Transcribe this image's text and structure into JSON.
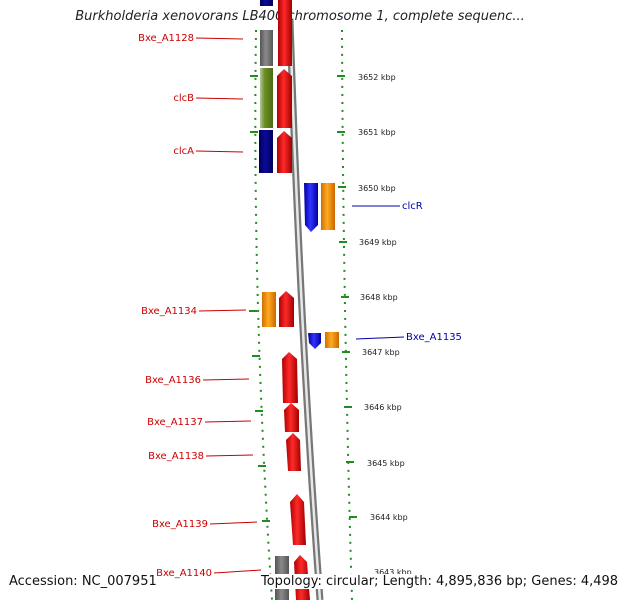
{
  "title": "Burkholderia xenovorans LB400 chromosome 1, complete sequenc...",
  "footer": {
    "accession": "Accession: NC_007951",
    "summary": "Topology: circular; Length: 4,895,836 bp; Genes: 4,498"
  },
  "colors": {
    "forward_label": "#cc0000",
    "reverse_label": "#0000aa",
    "gene_red": "#ee1111",
    "gene_blue": "#1111ee",
    "gene_orange": "#ff9900",
    "gene_grey": "#777777",
    "gene_navy": "#000080",
    "gene_olive": "#6b8e23",
    "tick_green": "#228b22"
  },
  "scale_ticks": [
    "3652 kbp",
    "3651 kbp",
    "3650 kbp",
    "3649 kbp",
    "3648 kbp",
    "3647 kbp",
    "3646 kbp",
    "3645 kbp",
    "3644 kbp",
    "3643 kbp"
  ],
  "gene_labels": [
    {
      "label": "Bxe_A1128",
      "strand": "forward"
    },
    {
      "label": "clcB",
      "strand": "forward"
    },
    {
      "label": "clcA",
      "strand": "forward"
    },
    {
      "label": "clcR",
      "strand": "reverse"
    },
    {
      "label": "Bxe_A1134",
      "strand": "forward"
    },
    {
      "label": "Bxe_A1135",
      "strand": "reverse"
    },
    {
      "label": "Bxe_A1136",
      "strand": "forward"
    },
    {
      "label": "Bxe_A1137",
      "strand": "forward"
    },
    {
      "label": "Bxe_A1138",
      "strand": "forward"
    },
    {
      "label": "Bxe_A1139",
      "strand": "forward"
    },
    {
      "label": "Bxe_A1140",
      "strand": "forward"
    }
  ]
}
